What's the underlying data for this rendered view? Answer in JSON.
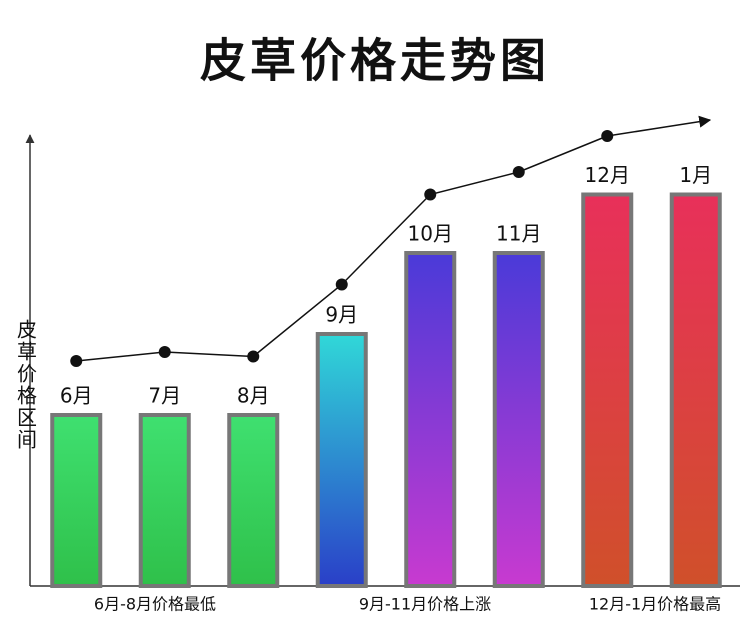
{
  "chart_data": {
    "type": "bar",
    "title": "皮草价格走势图",
    "y_label": "皮草价格区间",
    "categories": [
      "6月",
      "7月",
      "8月",
      "9月",
      "10月",
      "11月",
      "12月",
      "1月"
    ],
    "values": [
      38,
      38,
      38,
      56,
      74,
      74,
      87,
      87
    ],
    "colors": [
      [
        "#3fe070",
        "#2fc04a"
      ],
      [
        "#3fe070",
        "#2fc04a"
      ],
      [
        "#3fe070",
        "#2fc04a"
      ],
      [
        "#30d8d8",
        "#2a3fc8"
      ],
      [
        "#4a3ad8",
        "#c83ad0"
      ],
      [
        "#4a3ad8",
        "#c83ad0"
      ],
      [
        "#e8305a",
        "#d0502a"
      ],
      [
        "#e8305a",
        "#d0502a"
      ]
    ],
    "trend_values": [
      50,
      52,
      51,
      67,
      87,
      92,
      100,
      null
    ],
    "ylim": [
      0,
      100
    ],
    "annotations": [
      "6月-8月价格最低",
      "9月-11月价格上涨",
      "12月-1月价格最高"
    ]
  }
}
